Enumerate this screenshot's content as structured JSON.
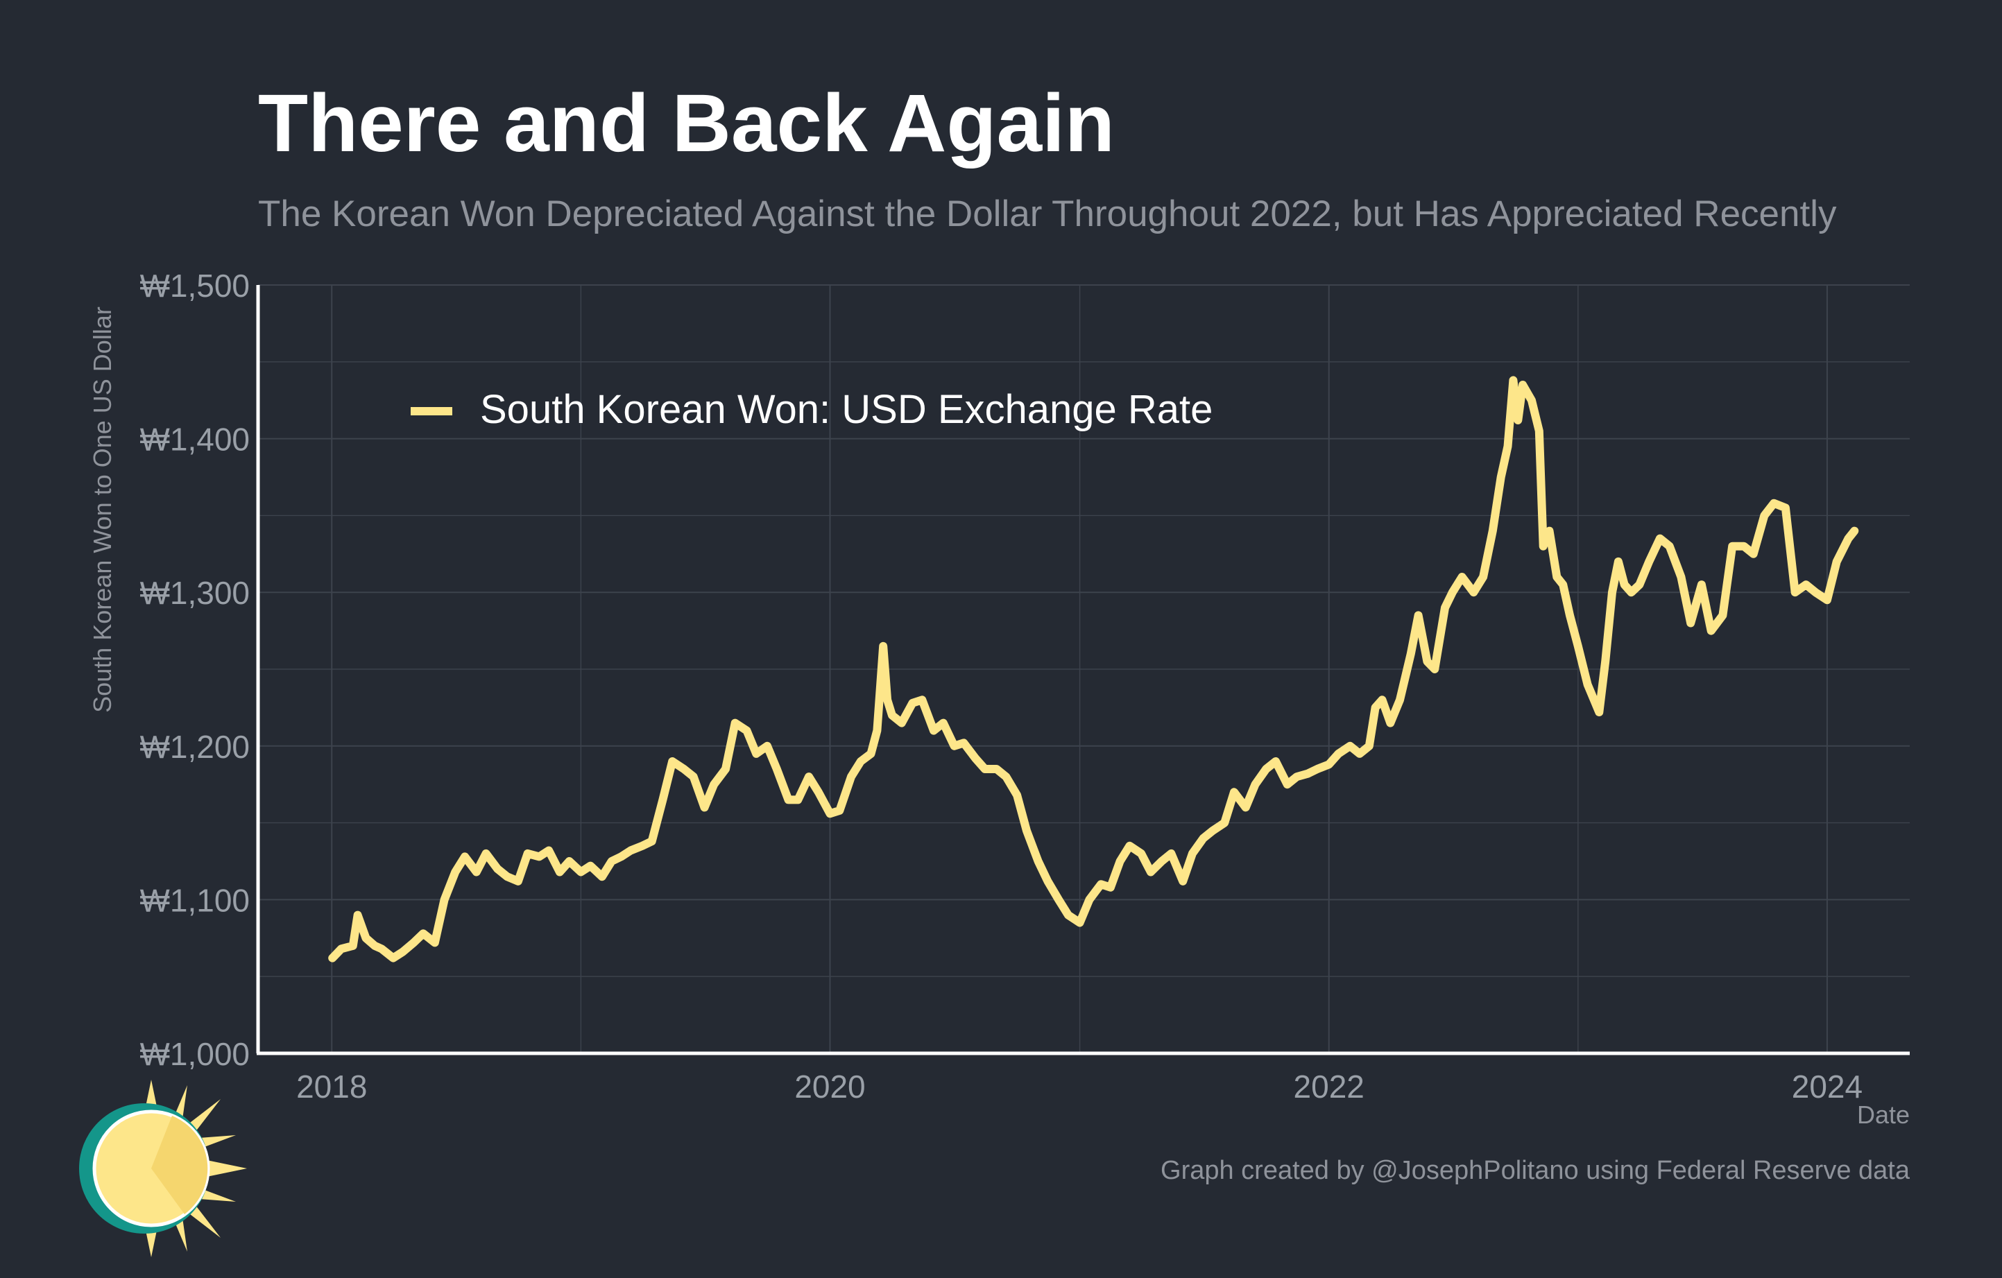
{
  "chart_data": {
    "type": "line",
    "title": "There and Back Again",
    "subtitle": "The Korean Won Depreciated Against the Dollar Throughout 2022, but Has Appreciated Recently",
    "xlabel": "Date",
    "ylabel": "South Korean Won to One US Dollar",
    "xlim": [
      "2017-09-15",
      "2024-05-01"
    ],
    "ylim": [
      1000,
      1500
    ],
    "y_ticks": [
      1000,
      1100,
      1200,
      1300,
      1400,
      1500
    ],
    "y_tick_labels": [
      "₩1,000",
      "₩1,100",
      "₩1,200",
      "₩1,300",
      "₩1,400",
      "₩1,500"
    ],
    "x_ticks": [
      "2018-01-01",
      "2020-01-01",
      "2022-01-01",
      "2024-01-01"
    ],
    "x_tick_labels": [
      "2018",
      "2020",
      "2022",
      "2024"
    ],
    "grid": true,
    "legend_position": "top-left",
    "series": [
      {
        "name": "South Korean Won: USD Exchange Rate",
        "color": "#fde68a",
        "points": [
          [
            "2018-01-02",
            1062
          ],
          [
            "2018-01-15",
            1068
          ],
          [
            "2018-02-01",
            1070
          ],
          [
            "2018-02-08",
            1090
          ],
          [
            "2018-02-20",
            1075
          ],
          [
            "2018-03-05",
            1070
          ],
          [
            "2018-03-15",
            1068
          ],
          [
            "2018-04-01",
            1062
          ],
          [
            "2018-04-15",
            1066
          ],
          [
            "2018-05-01",
            1072
          ],
          [
            "2018-05-15",
            1078
          ],
          [
            "2018-06-01",
            1072
          ],
          [
            "2018-06-15",
            1100
          ],
          [
            "2018-07-01",
            1118
          ],
          [
            "2018-07-15",
            1128
          ],
          [
            "2018-08-01",
            1118
          ],
          [
            "2018-08-15",
            1130
          ],
          [
            "2018-09-01",
            1120
          ],
          [
            "2018-09-15",
            1115
          ],
          [
            "2018-10-01",
            1112
          ],
          [
            "2018-10-15",
            1130
          ],
          [
            "2018-11-01",
            1128
          ],
          [
            "2018-11-15",
            1132
          ],
          [
            "2018-12-01",
            1118
          ],
          [
            "2018-12-15",
            1125
          ],
          [
            "2019-01-01",
            1118
          ],
          [
            "2019-01-15",
            1122
          ],
          [
            "2019-02-01",
            1115
          ],
          [
            "2019-02-15",
            1125
          ],
          [
            "2019-03-01",
            1128
          ],
          [
            "2019-03-15",
            1132
          ],
          [
            "2019-04-01",
            1135
          ],
          [
            "2019-04-15",
            1138
          ],
          [
            "2019-05-01",
            1165
          ],
          [
            "2019-05-15",
            1190
          ],
          [
            "2019-06-01",
            1185
          ],
          [
            "2019-06-15",
            1180
          ],
          [
            "2019-07-01",
            1160
          ],
          [
            "2019-07-15",
            1175
          ],
          [
            "2019-08-01",
            1185
          ],
          [
            "2019-08-15",
            1215
          ],
          [
            "2019-09-01",
            1210
          ],
          [
            "2019-09-15",
            1195
          ],
          [
            "2019-10-01",
            1200
          ],
          [
            "2019-10-15",
            1185
          ],
          [
            "2019-11-01",
            1165
          ],
          [
            "2019-11-15",
            1165
          ],
          [
            "2019-12-01",
            1180
          ],
          [
            "2019-12-15",
            1170
          ],
          [
            "2020-01-01",
            1156
          ],
          [
            "2020-01-15",
            1158
          ],
          [
            "2020-02-01",
            1180
          ],
          [
            "2020-02-15",
            1190
          ],
          [
            "2020-03-01",
            1195
          ],
          [
            "2020-03-10",
            1210
          ],
          [
            "2020-03-19",
            1265
          ],
          [
            "2020-03-25",
            1230
          ],
          [
            "2020-04-01",
            1220
          ],
          [
            "2020-04-15",
            1215
          ],
          [
            "2020-05-01",
            1228
          ],
          [
            "2020-05-15",
            1230
          ],
          [
            "2020-06-01",
            1210
          ],
          [
            "2020-06-15",
            1215
          ],
          [
            "2020-07-01",
            1200
          ],
          [
            "2020-07-15",
            1202
          ],
          [
            "2020-08-01",
            1192
          ],
          [
            "2020-08-15",
            1185
          ],
          [
            "2020-09-01",
            1185
          ],
          [
            "2020-09-15",
            1180
          ],
          [
            "2020-10-01",
            1168
          ],
          [
            "2020-10-15",
            1145
          ],
          [
            "2020-11-01",
            1125
          ],
          [
            "2020-11-15",
            1112
          ],
          [
            "2020-12-01",
            1100
          ],
          [
            "2020-12-15",
            1090
          ],
          [
            "2021-01-01",
            1085
          ],
          [
            "2021-01-15",
            1100
          ],
          [
            "2021-02-01",
            1110
          ],
          [
            "2021-02-15",
            1108
          ],
          [
            "2021-03-01",
            1125
          ],
          [
            "2021-03-15",
            1135
          ],
          [
            "2021-04-01",
            1130
          ],
          [
            "2021-04-15",
            1118
          ],
          [
            "2021-05-01",
            1125
          ],
          [
            "2021-05-15",
            1130
          ],
          [
            "2021-06-01",
            1112
          ],
          [
            "2021-06-15",
            1130
          ],
          [
            "2021-07-01",
            1140
          ],
          [
            "2021-07-15",
            1145
          ],
          [
            "2021-08-01",
            1150
          ],
          [
            "2021-08-15",
            1170
          ],
          [
            "2021-09-01",
            1160
          ],
          [
            "2021-09-15",
            1175
          ],
          [
            "2021-10-01",
            1185
          ],
          [
            "2021-10-15",
            1190
          ],
          [
            "2021-11-01",
            1175
          ],
          [
            "2021-11-15",
            1180
          ],
          [
            "2021-12-01",
            1182
          ],
          [
            "2021-12-15",
            1185
          ],
          [
            "2022-01-01",
            1188
          ],
          [
            "2022-01-15",
            1195
          ],
          [
            "2022-02-01",
            1200
          ],
          [
            "2022-02-15",
            1195
          ],
          [
            "2022-03-01",
            1200
          ],
          [
            "2022-03-10",
            1225
          ],
          [
            "2022-03-20",
            1230
          ],
          [
            "2022-04-01",
            1215
          ],
          [
            "2022-04-15",
            1230
          ],
          [
            "2022-05-01",
            1260
          ],
          [
            "2022-05-12",
            1285
          ],
          [
            "2022-05-25",
            1255
          ],
          [
            "2022-06-05",
            1250
          ],
          [
            "2022-06-20",
            1290
          ],
          [
            "2022-07-01",
            1300
          ],
          [
            "2022-07-15",
            1310
          ],
          [
            "2022-08-01",
            1300
          ],
          [
            "2022-08-15",
            1310
          ],
          [
            "2022-08-29",
            1340
          ],
          [
            "2022-09-10",
            1375
          ],
          [
            "2022-09-20",
            1395
          ],
          [
            "2022-09-28",
            1438
          ],
          [
            "2022-10-05",
            1412
          ],
          [
            "2022-10-12",
            1435
          ],
          [
            "2022-10-25",
            1425
          ],
          [
            "2022-11-05",
            1405
          ],
          [
            "2022-11-11",
            1330
          ],
          [
            "2022-11-20",
            1340
          ],
          [
            "2022-12-01",
            1310
          ],
          [
            "2022-12-10",
            1305
          ],
          [
            "2022-12-20",
            1285
          ],
          [
            "2023-01-01",
            1265
          ],
          [
            "2023-01-15",
            1240
          ],
          [
            "2023-02-01",
            1222
          ],
          [
            "2023-02-10",
            1255
          ],
          [
            "2023-02-20",
            1300
          ],
          [
            "2023-03-01",
            1320
          ],
          [
            "2023-03-10",
            1305
          ],
          [
            "2023-03-20",
            1300
          ],
          [
            "2023-04-01",
            1305
          ],
          [
            "2023-04-15",
            1320
          ],
          [
            "2023-05-01",
            1335
          ],
          [
            "2023-05-15",
            1330
          ],
          [
            "2023-06-01",
            1310
          ],
          [
            "2023-06-15",
            1280
          ],
          [
            "2023-07-01",
            1305
          ],
          [
            "2023-07-15",
            1275
          ],
          [
            "2023-08-01",
            1285
          ],
          [
            "2023-08-15",
            1330
          ],
          [
            "2023-09-01",
            1330
          ],
          [
            "2023-09-15",
            1325
          ],
          [
            "2023-10-01",
            1350
          ],
          [
            "2023-10-15",
            1358
          ],
          [
            "2023-11-01",
            1355
          ],
          [
            "2023-11-15",
            1300
          ],
          [
            "2023-12-01",
            1305
          ],
          [
            "2023-12-15",
            1300
          ],
          [
            "2024-01-01",
            1295
          ],
          [
            "2024-01-15",
            1320
          ],
          [
            "2024-02-01",
            1335
          ],
          [
            "2024-02-10",
            1340
          ]
        ]
      }
    ]
  },
  "footer": {
    "credit": "Graph created by @JosephPolitano using Federal Reserve data"
  },
  "colors": {
    "background": "#252a33",
    "line": "#fde68a",
    "grid": "#3d434d",
    "axis": "#ffffff",
    "logo_teal": "#14968a",
    "logo_yellow": "#fde68a"
  },
  "icons": {
    "logo": "sun-logo-icon"
  }
}
